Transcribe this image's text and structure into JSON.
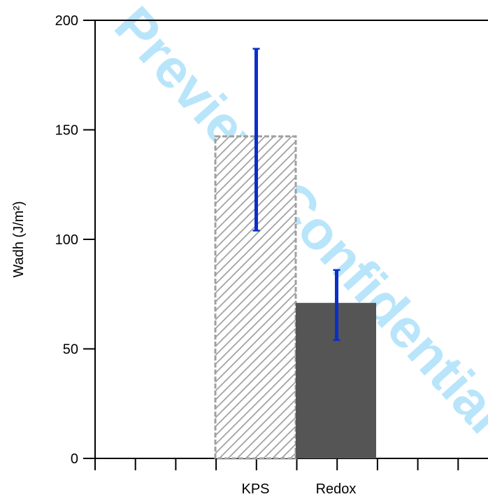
{
  "chart_data": {
    "type": "bar",
    "categories": [
      "KPS",
      "Redox"
    ],
    "ylabel": "Wadh (J/m²)",
    "ylim": [
      0,
      200
    ],
    "yticks": [
      0,
      50,
      100,
      150,
      200
    ],
    "grid": false,
    "series": [
      {
        "values": [
          147,
          71
        ],
        "error_low": [
          104,
          54
        ],
        "error_high": [
          187,
          86
        ]
      }
    ],
    "bar_styles": [
      "hatched",
      "solid"
    ],
    "colors": {
      "kps_hatch": "#a0a0a0",
      "redox_fill": "#555555",
      "error_bar": "#0a2fc8",
      "watermark": "#7fd0f8"
    },
    "watermark_text": "Preview. Confidential"
  }
}
